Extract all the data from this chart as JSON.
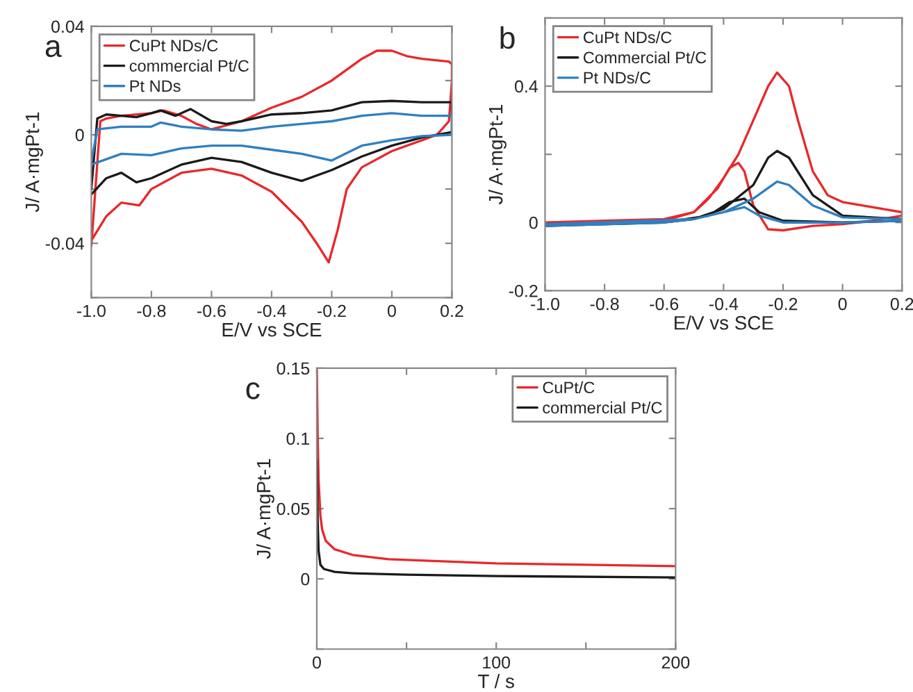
{
  "chart_data": [
    {
      "type": "line",
      "title": "a",
      "xlabel": "E/V vs SCE",
      "ylabel": "J/ A·mgPt-1",
      "xlim": [
        -1.0,
        0.2
      ],
      "ylim": [
        -0.06,
        0.04
      ],
      "xticks": [
        {
          "value": -1.0,
          "label": "-1.0"
        },
        {
          "value": -0.8,
          "label": "-0.8"
        },
        {
          "value": -0.6,
          "label": "-0.6"
        },
        {
          "value": -0.4,
          "label": "-0.4"
        },
        {
          "value": -0.2,
          "label": "-0.2"
        },
        0,
        {
          "value": 0.2,
          "label": "0.2"
        }
      ],
      "yticks": [
        {
          "value": -0.06,
          "label": null
        },
        {
          "value": -0.04,
          "label": "-0.04"
        },
        {
          "value": -0.02,
          "label": null
        },
        0,
        {
          "value": 0.02,
          "label": null
        },
        {
          "value": 0.04,
          "label": "0.04"
        }
      ],
      "legend": "top left",
      "grid": false,
      "series": [
        {
          "name": "CuPt NDs/C",
          "color": "#e8282b",
          "x": [
            -1,
            -0.97,
            -0.95,
            -0.9,
            -0.8,
            -0.76,
            -0.7,
            -0.65,
            -0.6,
            -0.5,
            -0.4,
            -0.3,
            -0.2,
            -0.1,
            -0.05,
            0,
            0.05,
            0.1,
            0.19,
            0.2,
            0.2,
            0.19,
            0.15,
            0.1,
            0,
            -0.1,
            -0.15,
            -0.18,
            -0.21,
            -0.25,
            -0.3,
            -0.4,
            -0.5,
            -0.6,
            -0.7,
            -0.8,
            -0.84,
            -0.9,
            -0.95,
            -1
          ],
          "values": [
            -0.041,
            0.005,
            0.006,
            0.007,
            0.008,
            0.009,
            0.007,
            0.004,
            0.002,
            0.005,
            0.01,
            0.014,
            0.02,
            0.028,
            0.031,
            0.031,
            0.029,
            0.028,
            0.027,
            0.026,
            0.02,
            0.005,
            0.0,
            -0.002,
            -0.006,
            -0.012,
            -0.02,
            -0.035,
            -0.047,
            -0.04,
            -0.032,
            -0.021,
            -0.015,
            -0.0125,
            -0.014,
            -0.02,
            -0.026,
            -0.025,
            -0.03,
            -0.039
          ]
        },
        {
          "name": "commercial Pt/C",
          "color": "#1a1a1a",
          "x": [
            -1,
            -0.98,
            -0.95,
            -0.9,
            -0.85,
            -0.8,
            -0.77,
            -0.72,
            -0.67,
            -0.6,
            -0.55,
            -0.5,
            -0.4,
            -0.3,
            -0.2,
            -0.1,
            0,
            0.1,
            0.2,
            0.2,
            0.1,
            0,
            -0.1,
            -0.2,
            -0.3,
            -0.4,
            -0.5,
            -0.6,
            -0.7,
            -0.8,
            -0.85,
            -0.9,
            -0.95,
            -1
          ],
          "values": [
            -0.02,
            0.006,
            0.0075,
            0.007,
            0.0065,
            0.008,
            0.009,
            0.007,
            0.0095,
            0.005,
            0.004,
            0.005,
            0.0075,
            0.008,
            0.009,
            0.012,
            0.0125,
            0.012,
            0.012,
            0.001,
            -0.001,
            -0.004,
            -0.008,
            -0.013,
            -0.017,
            -0.014,
            -0.01,
            -0.0085,
            -0.011,
            -0.016,
            -0.0175,
            -0.014,
            -0.016,
            -0.022
          ]
        },
        {
          "name": "Pt NDs",
          "color": "#2f7fc1",
          "x": [
            -1,
            -0.98,
            -0.9,
            -0.8,
            -0.77,
            -0.7,
            -0.6,
            -0.5,
            -0.4,
            -0.3,
            -0.2,
            -0.1,
            0,
            0.1,
            0.2,
            0.2,
            0.1,
            0,
            -0.1,
            -0.2,
            -0.3,
            -0.4,
            -0.5,
            -0.6,
            -0.7,
            -0.8,
            -0.9,
            -1
          ],
          "values": [
            -0.01,
            0.002,
            0.003,
            0.003,
            0.0045,
            0.003,
            0.002,
            0.0015,
            0.003,
            0.004,
            0.005,
            0.007,
            0.008,
            0.007,
            0.007,
            0.0,
            -0.0005,
            -0.002,
            -0.004,
            -0.0095,
            -0.007,
            -0.0055,
            -0.004,
            -0.004,
            -0.005,
            -0.0075,
            -0.007,
            -0.011
          ]
        }
      ]
    },
    {
      "type": "line",
      "title": "b",
      "xlabel": "E/V vs SCE",
      "ylabel": "J/ A·mgPt-1",
      "xlim": [
        -1.0,
        0.2
      ],
      "ylim": [
        -0.2,
        0.6
      ],
      "xticks": [
        {
          "value": -1.0,
          "label": "-1.0"
        },
        {
          "value": -0.8,
          "label": "-0.8"
        },
        {
          "value": -0.6,
          "label": "-0.6"
        },
        {
          "value": -0.4,
          "label": "-0.4"
        },
        {
          "value": -0.2,
          "label": "-0.2"
        },
        0,
        {
          "value": 0.2,
          "label": "0.2"
        }
      ],
      "yticks": [
        {
          "value": -0.2,
          "label": "-0.2"
        },
        0,
        {
          "value": 0.2,
          "label": null
        },
        {
          "value": 0.4,
          "label": "0.4"
        },
        {
          "value": 0.6,
          "label": null
        }
      ],
      "legend": "top left",
      "grid": false,
      "series": [
        {
          "name": "CuPt NDs/C",
          "color": "#e8282b",
          "x": [
            -1,
            -0.8,
            -0.6,
            -0.5,
            -0.45,
            -0.4,
            -0.35,
            -0.3,
            -0.25,
            -0.22,
            -0.18,
            -0.15,
            -0.1,
            -0.05,
            0,
            0.1,
            0.2,
            0.2,
            0.1,
            0,
            -0.1,
            -0.2,
            -0.25,
            -0.3,
            -0.33,
            -0.35,
            -0.38,
            -0.42,
            -0.5,
            -0.6,
            -0.8,
            -1
          ],
          "values": [
            -0.01,
            -0.002,
            0.005,
            0.03,
            0.07,
            0.13,
            0.2,
            0.3,
            0.4,
            0.44,
            0.4,
            0.3,
            0.15,
            0.08,
            0.06,
            0.045,
            0.03,
            0.02,
            0.005,
            -0.005,
            -0.01,
            -0.023,
            -0.02,
            0.05,
            0.15,
            0.175,
            0.16,
            0.1,
            0.03,
            0.01,
            0.005,
            0.0
          ]
        },
        {
          "name": "Commercial Pt/C",
          "color": "#1a1a1a",
          "x": [
            -1,
            -0.6,
            -0.5,
            -0.4,
            -0.3,
            -0.25,
            -0.22,
            -0.18,
            -0.1,
            0,
            0.2,
            0.2,
            0,
            -0.2,
            -0.28,
            -0.33,
            -0.38,
            -0.45,
            -0.6,
            -1
          ],
          "values": [
            -0.01,
            0.0,
            0.01,
            0.04,
            0.11,
            0.19,
            0.21,
            0.19,
            0.08,
            0.02,
            0.01,
            0.005,
            0.0,
            0.005,
            0.03,
            0.07,
            0.06,
            0.02,
            0.0,
            -0.005
          ]
        },
        {
          "name": "Pt NDs/C",
          "color": "#2f7fc1",
          "x": [
            -1,
            -0.6,
            -0.5,
            -0.4,
            -0.3,
            -0.22,
            -0.18,
            -0.1,
            0,
            0.2,
            0.2,
            0,
            -0.2,
            -0.28,
            -0.33,
            -0.4,
            -0.5,
            -1
          ],
          "values": [
            -0.01,
            0.0,
            0.01,
            0.03,
            0.07,
            0.12,
            0.11,
            0.05,
            0.015,
            0.01,
            0.005,
            0.0,
            0.0,
            0.02,
            0.045,
            0.03,
            0.01,
            -0.005
          ]
        }
      ]
    },
    {
      "type": "line",
      "title": "c",
      "xlabel": "T / s",
      "ylabel": "J/ A·mgPt-1",
      "xlim": [
        0,
        200
      ],
      "ylim": [
        -0.05,
        0.15
      ],
      "xticks": [
        0,
        {
          "value": 50,
          "label": null
        },
        100,
        {
          "value": 150,
          "label": null
        },
        200
      ],
      "yticks": [
        {
          "value": -0.05,
          "label": null
        },
        0,
        0.05,
        0.1,
        0.15
      ],
      "legend": "top right",
      "grid": false,
      "series": [
        {
          "name": "CuPt/C",
          "color": "#e8282b",
          "x": [
            0,
            0.5,
            1,
            2,
            3,
            5,
            10,
            20,
            40,
            60,
            100,
            150,
            200
          ],
          "values": [
            0.15,
            0.1,
            0.07,
            0.045,
            0.035,
            0.027,
            0.021,
            0.017,
            0.014,
            0.013,
            0.011,
            0.01,
            0.009
          ]
        },
        {
          "name": "commercial Pt/C",
          "color": "#1a1a1a",
          "x": [
            0,
            0.5,
            1,
            2,
            4,
            10,
            20,
            50,
            100,
            200
          ],
          "values": [
            0.085,
            0.04,
            0.02,
            0.01,
            0.007,
            0.005,
            0.004,
            0.003,
            0.002,
            0.001
          ]
        }
      ]
    }
  ]
}
